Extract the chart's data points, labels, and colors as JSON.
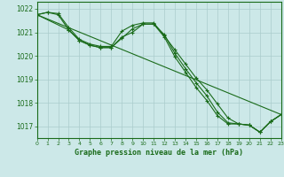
{
  "bg_color": "#cce8e8",
  "grid_color": "#aacccc",
  "line_color": "#1a6b1a",
  "title": "Graphe pression niveau de la mer (hPa)",
  "xlim": [
    0,
    23
  ],
  "ylim": [
    1016.5,
    1022.3
  ],
  "yticks": [
    1017,
    1018,
    1019,
    1020,
    1021,
    1022
  ],
  "xticks": [
    0,
    1,
    2,
    3,
    4,
    5,
    6,
    7,
    8,
    9,
    10,
    11,
    12,
    13,
    14,
    15,
    16,
    17,
    18,
    19,
    20,
    21,
    22,
    23
  ],
  "line1_x": [
    0,
    1,
    2,
    3,
    4,
    5,
    6,
    7,
    8,
    9,
    10,
    11,
    12,
    13,
    14,
    15,
    16,
    17,
    18,
    19,
    20,
    21,
    22,
    23
  ],
  "line1_y": [
    1021.75,
    1021.85,
    1021.8,
    1021.2,
    1020.7,
    1020.5,
    1020.4,
    1020.4,
    1021.05,
    1021.3,
    1021.4,
    1021.4,
    1020.85,
    1020.25,
    1019.65,
    1019.05,
    1018.55,
    1017.95,
    1017.35,
    1017.1,
    1017.05,
    1016.75,
    1017.2,
    1017.5
  ],
  "line2_x": [
    0,
    23
  ],
  "line2_y": [
    1021.75,
    1017.5
  ],
  "line3_x": [
    0,
    1,
    2,
    3,
    4,
    5,
    6,
    7,
    8,
    9,
    10,
    11,
    12,
    13,
    14,
    15,
    16,
    17,
    18,
    19,
    20,
    21,
    22,
    23
  ],
  "line3_y": [
    1021.75,
    1021.85,
    1021.75,
    1021.1,
    1020.65,
    1020.45,
    1020.35,
    1020.35,
    1020.75,
    1021.15,
    1021.35,
    1021.35,
    1020.8,
    1019.95,
    1019.3,
    1018.65,
    1018.1,
    1017.45,
    1017.1,
    1017.1,
    1017.05,
    1016.75,
    1017.2,
    1017.5
  ],
  "line4_x": [
    0,
    3,
    4,
    5,
    6,
    7,
    8,
    9,
    10,
    11,
    12,
    13,
    14,
    15,
    16,
    17,
    18,
    19,
    20,
    21,
    22,
    23
  ],
  "line4_y": [
    1021.75,
    1021.1,
    1020.65,
    1020.45,
    1020.35,
    1020.35,
    1020.8,
    1021.0,
    1021.35,
    1021.35,
    1020.9,
    1020.1,
    1019.45,
    1018.85,
    1018.3,
    1017.6,
    1017.15,
    1017.1,
    1017.05,
    1016.75,
    1017.2,
    1017.5
  ]
}
